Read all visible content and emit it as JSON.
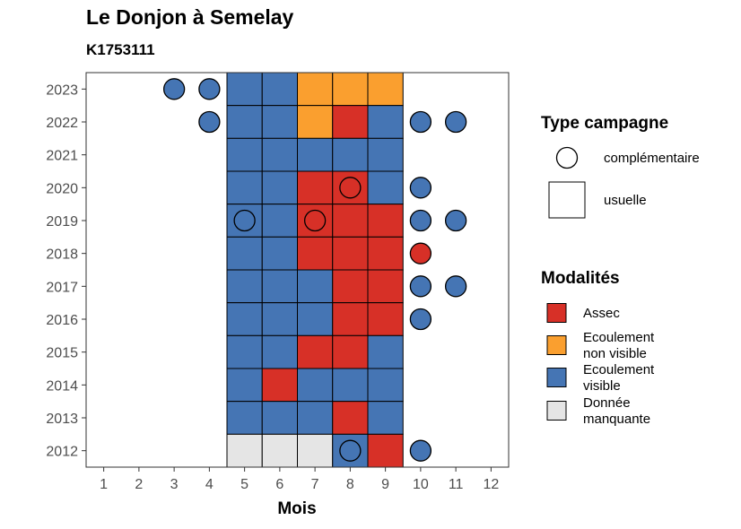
{
  "title": "Le Donjon à Semelay",
  "subtitle": "K1753111",
  "chart_data": {
    "type": "heatmap",
    "xlabel": "Mois",
    "ylabel": "",
    "x_ticks": [
      "1",
      "2",
      "3",
      "4",
      "5",
      "6",
      "7",
      "8",
      "9",
      "10",
      "11",
      "12"
    ],
    "y_ticks": [
      "2012",
      "2013",
      "2014",
      "2015",
      "2016",
      "2017",
      "2018",
      "2019",
      "2020",
      "2021",
      "2022",
      "2023"
    ],
    "xlim": [
      0.5,
      12.5
    ],
    "ylim": [
      2011.5,
      2023.5
    ],
    "grid": false,
    "legend_position": "right",
    "colors": {
      "Assec": "#d73027",
      "Ecoulement non visible": "#fa9f2f",
      "Ecoulement visible": "#4575b4",
      "Donnée manquante": "#e5e5e5"
    },
    "cells_usuelle": [
      {
        "year": 2023,
        "month": 5,
        "value": "Ecoulement visible"
      },
      {
        "year": 2023,
        "month": 6,
        "value": "Ecoulement visible"
      },
      {
        "year": 2023,
        "month": 7,
        "value": "Ecoulement non visible"
      },
      {
        "year": 2023,
        "month": 8,
        "value": "Ecoulement non visible"
      },
      {
        "year": 2023,
        "month": 9,
        "value": "Ecoulement non visible"
      },
      {
        "year": 2022,
        "month": 5,
        "value": "Ecoulement visible"
      },
      {
        "year": 2022,
        "month": 6,
        "value": "Ecoulement visible"
      },
      {
        "year": 2022,
        "month": 7,
        "value": "Ecoulement non visible"
      },
      {
        "year": 2022,
        "month": 8,
        "value": "Assec"
      },
      {
        "year": 2022,
        "month": 9,
        "value": "Ecoulement visible"
      },
      {
        "year": 2021,
        "month": 5,
        "value": "Ecoulement visible"
      },
      {
        "year": 2021,
        "month": 6,
        "value": "Ecoulement visible"
      },
      {
        "year": 2021,
        "month": 7,
        "value": "Ecoulement visible"
      },
      {
        "year": 2021,
        "month": 8,
        "value": "Ecoulement visible"
      },
      {
        "year": 2021,
        "month": 9,
        "value": "Ecoulement visible"
      },
      {
        "year": 2020,
        "month": 5,
        "value": "Ecoulement visible"
      },
      {
        "year": 2020,
        "month": 6,
        "value": "Ecoulement visible"
      },
      {
        "year": 2020,
        "month": 7,
        "value": "Assec"
      },
      {
        "year": 2020,
        "month": 8,
        "value": "Assec"
      },
      {
        "year": 2020,
        "month": 9,
        "value": "Ecoulement visible"
      },
      {
        "year": 2019,
        "month": 5,
        "value": "Ecoulement visible"
      },
      {
        "year": 2019,
        "month": 6,
        "value": "Ecoulement visible"
      },
      {
        "year": 2019,
        "month": 7,
        "value": "Assec"
      },
      {
        "year": 2019,
        "month": 8,
        "value": "Assec"
      },
      {
        "year": 2019,
        "month": 9,
        "value": "Assec"
      },
      {
        "year": 2018,
        "month": 5,
        "value": "Ecoulement visible"
      },
      {
        "year": 2018,
        "month": 6,
        "value": "Ecoulement visible"
      },
      {
        "year": 2018,
        "month": 7,
        "value": "Assec"
      },
      {
        "year": 2018,
        "month": 8,
        "value": "Assec"
      },
      {
        "year": 2018,
        "month": 9,
        "value": "Assec"
      },
      {
        "year": 2017,
        "month": 5,
        "value": "Ecoulement visible"
      },
      {
        "year": 2017,
        "month": 6,
        "value": "Ecoulement visible"
      },
      {
        "year": 2017,
        "month": 7,
        "value": "Ecoulement visible"
      },
      {
        "year": 2017,
        "month": 8,
        "value": "Assec"
      },
      {
        "year": 2017,
        "month": 9,
        "value": "Assec"
      },
      {
        "year": 2016,
        "month": 5,
        "value": "Ecoulement visible"
      },
      {
        "year": 2016,
        "month": 6,
        "value": "Ecoulement visible"
      },
      {
        "year": 2016,
        "month": 7,
        "value": "Ecoulement visible"
      },
      {
        "year": 2016,
        "month": 8,
        "value": "Assec"
      },
      {
        "year": 2016,
        "month": 9,
        "value": "Assec"
      },
      {
        "year": 2015,
        "month": 5,
        "value": "Ecoulement visible"
      },
      {
        "year": 2015,
        "month": 6,
        "value": "Ecoulement visible"
      },
      {
        "year": 2015,
        "month": 7,
        "value": "Assec"
      },
      {
        "year": 2015,
        "month": 8,
        "value": "Assec"
      },
      {
        "year": 2015,
        "month": 9,
        "value": "Ecoulement visible"
      },
      {
        "year": 2014,
        "month": 5,
        "value": "Ecoulement visible"
      },
      {
        "year": 2014,
        "month": 6,
        "value": "Assec"
      },
      {
        "year": 2014,
        "month": 7,
        "value": "Ecoulement visible"
      },
      {
        "year": 2014,
        "month": 8,
        "value": "Ecoulement visible"
      },
      {
        "year": 2014,
        "month": 9,
        "value": "Ecoulement visible"
      },
      {
        "year": 2013,
        "month": 5,
        "value": "Ecoulement visible"
      },
      {
        "year": 2013,
        "month": 6,
        "value": "Ecoulement visible"
      },
      {
        "year": 2013,
        "month": 7,
        "value": "Ecoulement visible"
      },
      {
        "year": 2013,
        "month": 8,
        "value": "Assec"
      },
      {
        "year": 2013,
        "month": 9,
        "value": "Ecoulement visible"
      },
      {
        "year": 2012,
        "month": 5,
        "value": "Donnée manquante"
      },
      {
        "year": 2012,
        "month": 6,
        "value": "Donnée manquante"
      },
      {
        "year": 2012,
        "month": 7,
        "value": "Donnée manquante"
      },
      {
        "year": 2012,
        "month": 8,
        "value": "Ecoulement visible"
      },
      {
        "year": 2012,
        "month": 9,
        "value": "Assec"
      }
    ],
    "points_complementaire": [
      {
        "year": 2023,
        "month": 3,
        "value": "Ecoulement visible"
      },
      {
        "year": 2023,
        "month": 4,
        "value": "Ecoulement visible"
      },
      {
        "year": 2022,
        "month": 4,
        "value": "Ecoulement visible"
      },
      {
        "year": 2022,
        "month": 10,
        "value": "Ecoulement visible"
      },
      {
        "year": 2022,
        "month": 11,
        "value": "Ecoulement visible"
      },
      {
        "year": 2020,
        "month": 8,
        "value": "Assec"
      },
      {
        "year": 2020,
        "month": 10,
        "value": "Ecoulement visible"
      },
      {
        "year": 2019,
        "month": 5,
        "value": "Ecoulement visible"
      },
      {
        "year": 2019,
        "month": 7,
        "value": "Assec"
      },
      {
        "year": 2019,
        "month": 10,
        "value": "Ecoulement visible"
      },
      {
        "year": 2019,
        "month": 11,
        "value": "Ecoulement visible"
      },
      {
        "year": 2018,
        "month": 10,
        "value": "Assec"
      },
      {
        "year": 2017,
        "month": 10,
        "value": "Ecoulement visible"
      },
      {
        "year": 2017,
        "month": 11,
        "value": "Ecoulement visible"
      },
      {
        "year": 2016,
        "month": 10,
        "value": "Ecoulement visible"
      },
      {
        "year": 2012,
        "month": 8,
        "value": "Ecoulement visible"
      },
      {
        "year": 2012,
        "month": 10,
        "value": "Ecoulement visible"
      }
    ],
    "legend_type": {
      "title": "Type campagne",
      "entries": [
        {
          "shape": "circle",
          "label": "complémentaire"
        },
        {
          "shape": "square",
          "label": "usuelle"
        }
      ]
    },
    "legend_modalites": {
      "title": "Modalités",
      "entries": [
        {
          "key": "Assec",
          "lines": [
            "Assec"
          ]
        },
        {
          "key": "Ecoulement non visible",
          "lines": [
            "Ecoulement",
            "non visible"
          ]
        },
        {
          "key": "Ecoulement visible",
          "lines": [
            "Ecoulement",
            "visible"
          ]
        },
        {
          "key": "Donnée manquante",
          "lines": [
            "Donnée",
            "manquante"
          ]
        }
      ]
    }
  }
}
